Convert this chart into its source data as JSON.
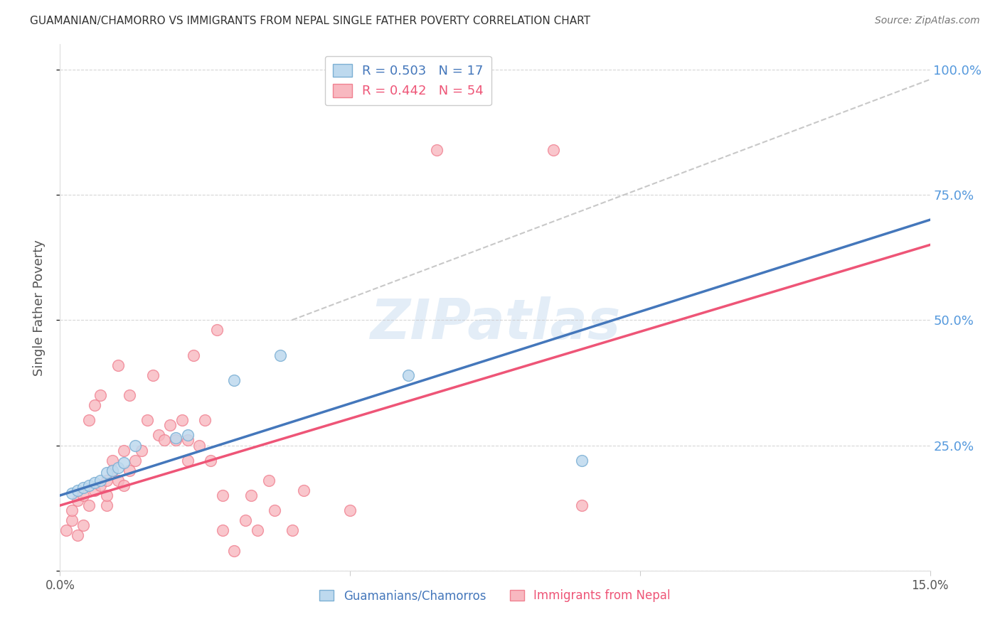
{
  "title": "GUAMANIAN/CHAMORRO VS IMMIGRANTS FROM NEPAL SINGLE FATHER POVERTY CORRELATION CHART",
  "source": "Source: ZipAtlas.com",
  "ylabel": "Single Father Poverty",
  "y_ticks": [
    0.0,
    0.25,
    0.5,
    0.75,
    1.0
  ],
  "y_tick_labels": [
    "",
    "25.0%",
    "50.0%",
    "75.0%",
    "100.0%"
  ],
  "xlim": [
    0.0,
    0.15
  ],
  "ylim": [
    0.0,
    1.05
  ],
  "watermark": "ZIPatlas",
  "blue_R": 0.503,
  "blue_N": 17,
  "pink_R": 0.442,
  "pink_N": 54,
  "blue_color": "#7BAFD4",
  "pink_color": "#F08090",
  "blue_fill": "#BDD9EE",
  "pink_fill": "#F8B8C0",
  "line_blue": "#4477BB",
  "line_pink": "#EE5577",
  "diag_color": "#BBBBBB",
  "legend_label_blue": "Guamanians/Chamorros",
  "legend_label_pink": "Immigrants from Nepal",
  "blue_x": [
    0.002,
    0.003,
    0.004,
    0.005,
    0.006,
    0.007,
    0.008,
    0.009,
    0.01,
    0.011,
    0.013,
    0.02,
    0.022,
    0.03,
    0.038,
    0.06,
    0.09
  ],
  "blue_y": [
    0.155,
    0.16,
    0.165,
    0.17,
    0.175,
    0.18,
    0.195,
    0.2,
    0.205,
    0.215,
    0.25,
    0.265,
    0.27,
    0.38,
    0.43,
    0.39,
    0.22
  ],
  "pink_x": [
    0.001,
    0.002,
    0.002,
    0.003,
    0.003,
    0.004,
    0.004,
    0.005,
    0.005,
    0.006,
    0.006,
    0.007,
    0.007,
    0.008,
    0.008,
    0.008,
    0.009,
    0.009,
    0.01,
    0.01,
    0.011,
    0.011,
    0.012,
    0.012,
    0.013,
    0.014,
    0.015,
    0.016,
    0.017,
    0.018,
    0.019,
    0.02,
    0.021,
    0.022,
    0.022,
    0.023,
    0.024,
    0.025,
    0.026,
    0.027,
    0.028,
    0.028,
    0.03,
    0.032,
    0.033,
    0.034,
    0.036,
    0.037,
    0.04,
    0.042,
    0.05,
    0.065,
    0.085,
    0.09
  ],
  "pink_y": [
    0.08,
    0.1,
    0.12,
    0.07,
    0.14,
    0.09,
    0.15,
    0.13,
    0.3,
    0.16,
    0.33,
    0.17,
    0.35,
    0.13,
    0.15,
    0.18,
    0.2,
    0.22,
    0.18,
    0.41,
    0.17,
    0.24,
    0.2,
    0.35,
    0.22,
    0.24,
    0.3,
    0.39,
    0.27,
    0.26,
    0.29,
    0.26,
    0.3,
    0.22,
    0.26,
    0.43,
    0.25,
    0.3,
    0.22,
    0.48,
    0.08,
    0.15,
    0.04,
    0.1,
    0.15,
    0.08,
    0.18,
    0.12,
    0.08,
    0.16,
    0.12,
    0.84,
    0.84,
    0.13
  ],
  "blue_line_x": [
    0.0,
    0.15
  ],
  "blue_line_y": [
    0.15,
    0.7
  ],
  "pink_line_x": [
    0.0,
    0.15
  ],
  "pink_line_y": [
    0.13,
    0.65
  ],
  "diag_line_x": [
    0.04,
    0.15
  ],
  "diag_line_y": [
    0.5,
    0.98
  ]
}
